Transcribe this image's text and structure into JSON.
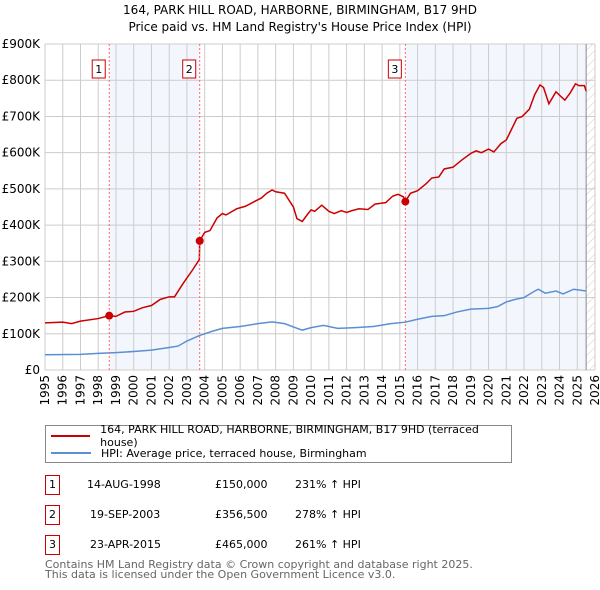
{
  "chart_data": {
    "type": "line",
    "title": "164, PARK HILL ROAD, HARBORNE, BIRMINGHAM, B17 9HD",
    "subtitle": "Price paid vs. HM Land Registry's House Price Index (HPI)",
    "xlim": [
      1995,
      2026
    ],
    "ylim": [
      0,
      900000
    ],
    "yticks": [
      0,
      100000,
      200000,
      300000,
      400000,
      500000,
      600000,
      700000,
      800000,
      900000
    ],
    "ytick_labels": [
      "£0",
      "£100K",
      "£200K",
      "£300K",
      "£400K",
      "£500K",
      "£600K",
      "£700K",
      "£800K",
      "£900K"
    ],
    "xticks": [
      1995,
      1996,
      1997,
      1998,
      1999,
      2000,
      2001,
      2002,
      2003,
      2004,
      2005,
      2006,
      2007,
      2008,
      2009,
      2010,
      2011,
      2012,
      2013,
      2014,
      2015,
      2016,
      2017,
      2018,
      2019,
      2020,
      2021,
      2022,
      2023,
      2024,
      2025,
      2026
    ],
    "grid": true,
    "forecast_hatch_from": 2025.5,
    "series": [
      {
        "name": "164, PARK HILL ROAD, HARBORNE, BIRMINGHAM, B17 9HD (terraced house)",
        "color": "#cc0000",
        "x": [
          1995,
          1996,
          1996.5,
          1997,
          1998,
          1998.62,
          1999,
          1999.5,
          2000,
          2000.5,
          2001,
          2001.5,
          2002,
          2002.3,
          2002.8,
          2003.3,
          2003.7,
          2003.72,
          2004,
          2004.3,
          2004.7,
          2005,
          2005.2,
          2005.8,
          2006,
          2006.3,
          2006.8,
          2007.2,
          2007.5,
          2007.8,
          2008,
          2008.5,
          2009,
          2009.2,
          2009.5,
          2009.8,
          2010,
          2010.2,
          2010.6,
          2011,
          2011.3,
          2011.7,
          2012,
          2012.3,
          2012.7,
          2013.2,
          2013.6,
          2014.2,
          2014.6,
          2014.9,
          2015.2,
          2015.31,
          2015.6,
          2016,
          2016.5,
          2016.8,
          2017.2,
          2017.5,
          2018,
          2018.5,
          2019,
          2019.3,
          2019.6,
          2020,
          2020.3,
          2020.7,
          2021,
          2021.3,
          2021.6,
          2021.9,
          2022.3,
          2022.6,
          2022.9,
          2023.1,
          2023.4,
          2023.8,
          2024.3,
          2024.6,
          2024.9,
          2025.1,
          2025.4,
          2025.5
        ],
        "y": [
          130,
          132,
          128,
          135,
          142,
          150,
          148,
          160,
          162,
          172,
          178,
          195,
          202,
          202,
          240,
          275,
          305,
          356.5,
          380,
          385,
          420,
          432,
          428,
          445,
          448,
          452,
          465,
          475,
          488,
          497,
          492,
          488,
          450,
          418,
          410,
          430,
          442,
          438,
          455,
          438,
          432,
          440,
          435,
          440,
          445,
          443,
          458,
          462,
          480,
          485,
          478,
          465,
          488,
          495,
          515,
          530,
          533,
          555,
          560,
          580,
          598,
          605,
          600,
          610,
          602,
          625,
          635,
          665,
          695,
          700,
          720,
          760,
          787,
          780,
          735,
          768,
          745,
          765,
          790,
          785,
          785,
          770
        ]
      },
      {
        "name": "HPI: Average price, terraced house, Birmingham",
        "color": "#5b8fd4",
        "x": [
          1995,
          1997,
          1998,
          1999,
          2000,
          2001,
          2002,
          2002.5,
          2003,
          2003.7,
          2004.5,
          2005,
          2006,
          2007,
          2007.8,
          2008.5,
          2009.5,
          2010,
          2010.7,
          2011.5,
          2012.5,
          2013.5,
          2014.5,
          2015.3,
          2016,
          2016.8,
          2017.5,
          2018.2,
          2019,
          2020,
          2020.5,
          2021,
          2021.5,
          2022,
          2022.5,
          2022.8,
          2023.2,
          2023.8,
          2024.2,
          2024.8,
          2025.5
        ],
        "y": [
          42,
          43,
          46,
          48,
          51,
          55,
          62,
          66,
          80,
          95,
          108,
          115,
          120,
          128,
          133,
          128,
          110,
          117,
          123,
          115,
          117,
          120,
          128,
          132,
          140,
          148,
          150,
          160,
          168,
          170,
          175,
          188,
          195,
          200,
          215,
          223,
          212,
          218,
          210,
          223,
          218
        ]
      }
    ],
    "y_units_note": "series y values in £ thousands",
    "sales": [
      {
        "label": "1",
        "x": 1998.62,
        "y": 150,
        "date": "14-AUG-1998",
        "price": "£150,000",
        "hpi": "231% ↑ HPI"
      },
      {
        "label": "2",
        "x": 2003.72,
        "y": 356.5,
        "date": "19-SEP-2003",
        "price": "£356,500",
        "hpi": "278% ↑ HPI"
      },
      {
        "label": "3",
        "x": 2015.31,
        "y": 465,
        "date": "23-APR-2015",
        "price": "£465,000",
        "hpi": "261% ↑ HPI"
      }
    ]
  },
  "footer": {
    "line1": "Contains HM Land Registry data © Crown copyright and database right 2025.",
    "line2": "This data is licensed under the Open Government Licence v3.0."
  }
}
